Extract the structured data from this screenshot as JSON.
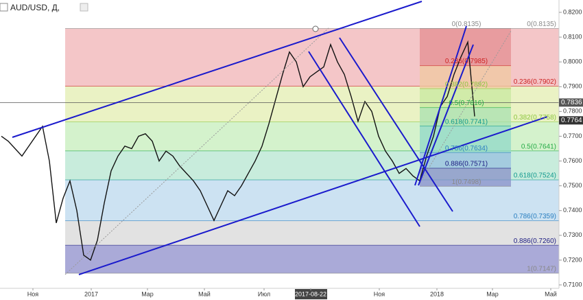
{
  "chart_data": {
    "type": "line",
    "title": "AUD/USD, Д,",
    "color": "#111111",
    "values": [
      0.77,
      0.768,
      0.765,
      0.762,
      0.766,
      0.77,
      0.774,
      0.76,
      0.735,
      0.745,
      0.752,
      0.74,
      0.722,
      0.72,
      0.728,
      0.743,
      0.756,
      0.762,
      0.766,
      0.765,
      0.77,
      0.771,
      0.768,
      0.76,
      0.764,
      0.762,
      0.758,
      0.755,
      0.752,
      0.748,
      0.742,
      0.736,
      0.742,
      0.748,
      0.746,
      0.75,
      0.755,
      0.76,
      0.766,
      0.775,
      0.785,
      0.795,
      0.804,
      0.8,
      0.79,
      0.794,
      0.796,
      0.798,
      0.807,
      0.8,
      0.795,
      0.786,
      0.776,
      0.784,
      0.78,
      0.77,
      0.764,
      0.76,
      0.755,
      0.757,
      0.754,
      0.752,
      0.762,
      0.77,
      0.782,
      0.786,
      0.795,
      0.802,
      0.808,
      0.778
    ],
    "ylim": [
      0.71,
      0.82
    ],
    "yticks": [
      {
        "value": 0.82,
        "label": "0.8200"
      },
      {
        "value": 0.81,
        "label": "0.8100"
      },
      {
        "value": 0.8,
        "label": "0.8000"
      },
      {
        "value": 0.79,
        "label": "0.7900"
      },
      {
        "value": 0.78,
        "label": "0.7800"
      },
      {
        "value": 0.77,
        "label": "0.7700"
      },
      {
        "value": 0.76,
        "label": "0.7600"
      },
      {
        "value": 0.75,
        "label": "0.7500"
      },
      {
        "value": 0.74,
        "label": "0.7400"
      },
      {
        "value": 0.73,
        "label": "0.7300"
      },
      {
        "value": 0.72,
        "label": "0.7200"
      },
      {
        "value": 0.71,
        "label": "0.7100"
      }
    ],
    "xtick_labels": [
      "Ноя",
      "2017",
      "Мар",
      "Май",
      "Июл",
      "2017-08-22",
      "Ноя",
      "2018",
      "Мар",
      "Май"
    ],
    "price_lines": [
      {
        "value": 0.7836,
        "label": "0.7836"
      },
      {
        "value": 0.7764,
        "label": "0.7764"
      }
    ],
    "fib_retracements": [
      {
        "levels": [
          {
            "ratio": 0,
            "price": 0.8135,
            "label": "0(0.8135)",
            "color": "#f4c6c8",
            "text_color": "#888888"
          },
          {
            "ratio": 0.236,
            "price": 0.7902,
            "label": "0.236(0.7902)",
            "color": "#eaf2c4",
            "text_color": "#cc2222"
          },
          {
            "ratio": 0.382,
            "price": 0.7758,
            "label": "0.382(0.7758)",
            "color": "#d4f2cc",
            "text_color": "#8cc63f"
          },
          {
            "ratio": 0.5,
            "price": 0.7641,
            "label": "0.5(0.7641)",
            "color": "#c8ecdc",
            "text_color": "#22aa44"
          },
          {
            "ratio": 0.618,
            "price": 0.7524,
            "label": "0.618(0.7524)",
            "color": "#cce2f2",
            "text_color": "#11998e"
          },
          {
            "ratio": 0.786,
            "price": 0.7359,
            "label": "0.786(0.7359)",
            "color": "#e2e2e2",
            "text_color": "#2a7fc0"
          },
          {
            "ratio": 0.886,
            "price": 0.726,
            "label": "0.886(0.7260)",
            "color": "#aaaad8",
            "text_color": "#1a1a80"
          },
          {
            "ratio": 1,
            "price": 0.7147,
            "label": "1(0.7147)",
            "color": "#aaaad8",
            "text_color": "#888888"
          }
        ]
      },
      {
        "levels": [
          {
            "ratio": 0,
            "price": 0.8135,
            "label": "0(0.8135)",
            "color": "#e48e92",
            "text_color": "#888888"
          },
          {
            "ratio": 0.236,
            "price": 0.7985,
            "label": "0.236(0.7985)",
            "color": "#f0c8a0",
            "text_color": "#cc2222"
          },
          {
            "ratio": 0.382,
            "price": 0.7892,
            "label": "0.382(0.7892)",
            "color": "#c8e8a0",
            "text_color": "#8cc63f"
          },
          {
            "ratio": 0.5,
            "price": 0.7816,
            "label": "0.5(0.7816)",
            "color": "#a8e0b0",
            "text_color": "#22aa44"
          },
          {
            "ratio": 0.618,
            "price": 0.7741,
            "label": "0.618(0.7741)",
            "color": "#90d8c8",
            "text_color": "#11998e"
          },
          {
            "ratio": 0.786,
            "price": 0.7634,
            "label": "0.786(0.7634)",
            "color": "#98c0e0",
            "text_color": "#2a7fc0"
          },
          {
            "ratio": 0.886,
            "price": 0.7571,
            "label": "0.886(0.7571)",
            "color": "#8890c8",
            "text_color": "#1a1a80"
          },
          {
            "ratio": 1,
            "price": 0.7498,
            "label": "1(0.7498)",
            "color": "#8890c8",
            "text_color": "#888888"
          }
        ]
      }
    ]
  }
}
